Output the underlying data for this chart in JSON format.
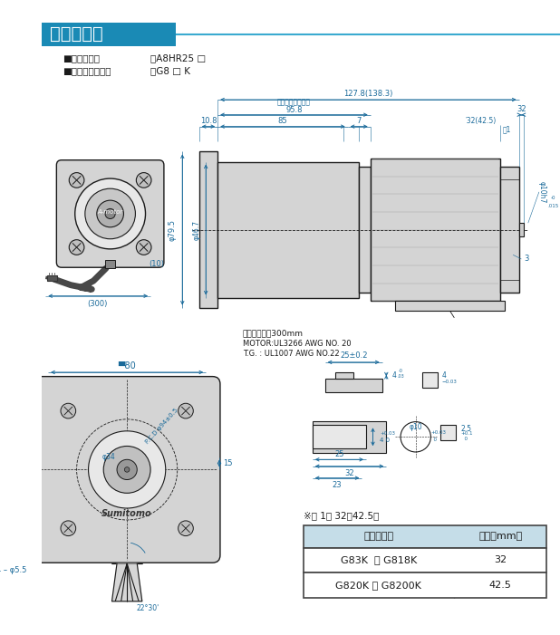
{
  "title": "ギヤモータ",
  "title_bg_color": "#1a8ab5",
  "title_text_color": "#ffffff",
  "bg_color": "#ffffff",
  "line_color": "#1a1a1a",
  "dim_color": "#1a6a9a",
  "fill_color": "#d4d4d4",
  "fill_color2": "#e8e8e8",
  "spec1_label": "■モータ形式",
  "spec1_value": "：A8HR25 □",
  "spec2_label": "■ギヤヘッド形式",
  "spec2_value": "：G8 □ K",
  "wire_note1": "リード線長さ300mm",
  "wire_note2": "MOTOR:UL3266 AWG NO. 20",
  "wire_note3": "T.G. : UL1007 AWG NO.22",
  "note_title": "※表 1． 32（42.5）",
  "table_header1": "ギヤヘッド",
  "table_header2": "寸法（mm）",
  "row1_col1": "G83K  ～ G818K",
  "row1_col2": "32",
  "row2_col1": "G820K ～ G8200K",
  "row2_col2": "42.5",
  "sumitomo_text": "Sumitomo",
  "dim32_42": "′32(42.5)",
  "table1_text": "表1",
  "motor_len_text": "（モータ部長さ）"
}
